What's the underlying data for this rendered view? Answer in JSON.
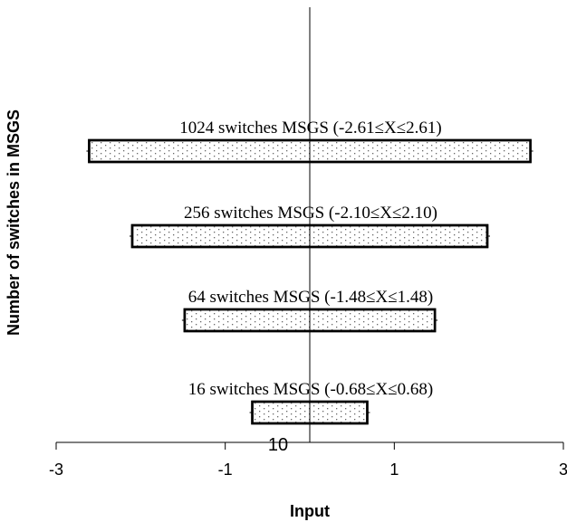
{
  "chart_data": {
    "type": "bar",
    "orientation": "horizontal-range",
    "title": "",
    "xlabel": "Input",
    "ylabel": "Number of switches in MSGS",
    "xlim": [
      -3,
      3
    ],
    "x_ticks": [
      "-3",
      "-1",
      "1",
      "3"
    ],
    "center_line_x": 0,
    "below_axis_label": "10",
    "grid": false,
    "legend": "none",
    "bar_fill": "dotted",
    "colors": {
      "bar_border": "#000000",
      "bar_fill": "#ffffff",
      "dots": "#666666"
    },
    "series": [
      {
        "name": "1024 switches MSGS",
        "label": "1024 switches MSGS (-2.61≤X≤2.61)",
        "min": -2.61,
        "max": 2.61
      },
      {
        "name": "256 switches MSGS",
        "label": "256 switches MSGS (-2.10≤X≤2.10)",
        "min": -2.1,
        "max": 2.1
      },
      {
        "name": "64 switches MSGS",
        "label": "64 switches MSGS (-1.48≤X≤1.48)",
        "min": -1.48,
        "max": 1.48
      },
      {
        "name": "16 switches MSGS",
        "label": "16 switches MSGS (-0.68≤X≤0.68)",
        "min": -0.68,
        "max": 0.68
      }
    ]
  }
}
